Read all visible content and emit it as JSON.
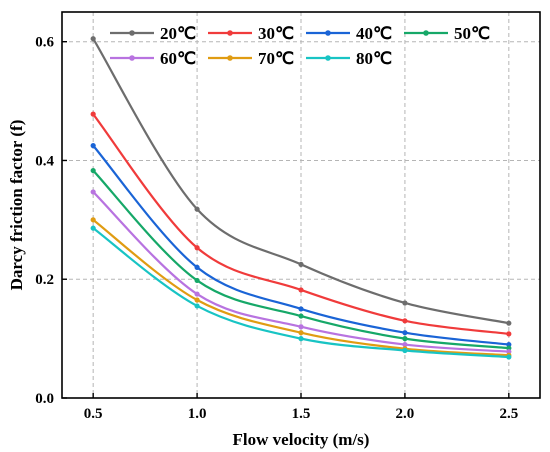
{
  "chart_data": {
    "type": "line",
    "xlabel": "Flow velocity (m/s)",
    "ylabel": "Darcy friction factor (f)",
    "xlim": [
      0.35,
      2.65
    ],
    "ylim": [
      0.0,
      0.65
    ],
    "xticks": [
      0.5,
      1.0,
      1.5,
      2.0,
      2.5
    ],
    "xtick_labels": [
      "0.5",
      "1.0",
      "1.5",
      "2.0",
      "2.5"
    ],
    "yticks": [
      0.0,
      0.2,
      0.4,
      0.6
    ],
    "ytick_labels": [
      "0.0",
      "0.2",
      "0.4",
      "0.6"
    ],
    "grid": true,
    "legend_position": "top-right",
    "x": [
      0.5,
      1.0,
      1.5,
      2.0,
      2.5
    ],
    "series": [
      {
        "name": "20℃",
        "color": "#6d6d6d",
        "values": [
          0.605,
          0.318,
          0.225,
          0.16,
          0.126
        ]
      },
      {
        "name": "30℃",
        "color": "#f03b3b",
        "values": [
          0.478,
          0.253,
          0.182,
          0.13,
          0.108
        ]
      },
      {
        "name": "40℃",
        "color": "#1a64d6",
        "values": [
          0.425,
          0.22,
          0.15,
          0.11,
          0.09
        ]
      },
      {
        "name": "50℃",
        "color": "#16a868",
        "values": [
          0.383,
          0.198,
          0.138,
          0.1,
          0.084
        ]
      },
      {
        "name": "60℃",
        "color": "#b873e0",
        "values": [
          0.347,
          0.175,
          0.12,
          0.09,
          0.078
        ]
      },
      {
        "name": "70℃",
        "color": "#e09c12",
        "values": [
          0.3,
          0.165,
          0.11,
          0.083,
          0.072
        ]
      },
      {
        "name": "80℃",
        "color": "#18c4c4",
        "values": [
          0.286,
          0.155,
          0.1,
          0.08,
          0.069
        ]
      }
    ]
  }
}
